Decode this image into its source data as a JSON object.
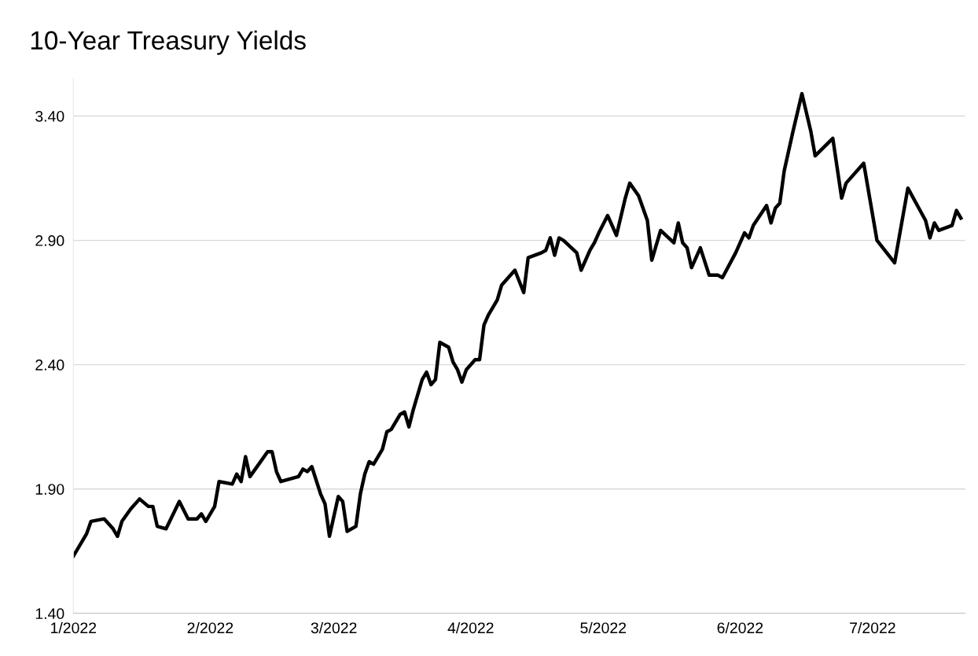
{
  "chart_data": {
    "type": "line",
    "title": "10-Year Treasury Yields",
    "x": [
      "2022-01-01",
      "2022-01-03",
      "2022-01-04",
      "2022-01-05",
      "2022-01-08",
      "2022-01-10",
      "2022-01-11",
      "2022-01-12",
      "2022-01-14",
      "2022-01-16",
      "2022-01-18",
      "2022-01-19",
      "2022-01-20",
      "2022-01-22",
      "2022-01-25",
      "2022-01-27",
      "2022-01-29",
      "2022-01-30",
      "2022-01-31",
      "2022-02-02",
      "2022-02-03",
      "2022-02-06",
      "2022-02-07",
      "2022-02-08",
      "2022-02-09",
      "2022-02-10",
      "2022-02-12",
      "2022-02-14",
      "2022-02-15",
      "2022-02-16",
      "2022-02-17",
      "2022-02-21",
      "2022-02-22",
      "2022-02-23",
      "2022-02-24",
      "2022-02-26",
      "2022-02-27",
      "2022-02-28",
      "2022-03-02",
      "2022-03-03",
      "2022-03-04",
      "2022-03-06",
      "2022-03-07",
      "2022-03-08",
      "2022-03-09",
      "2022-03-10",
      "2022-03-12",
      "2022-03-13",
      "2022-03-14",
      "2022-03-16",
      "2022-03-17",
      "2022-03-18",
      "2022-03-19",
      "2022-03-20",
      "2022-03-21",
      "2022-03-22",
      "2022-03-23",
      "2022-03-24",
      "2022-03-25",
      "2022-03-27",
      "2022-03-28",
      "2022-03-29",
      "2022-03-30",
      "2022-03-31",
      "2022-04-02",
      "2022-04-03",
      "2022-04-04",
      "2022-04-05",
      "2022-04-07",
      "2022-04-08",
      "2022-04-11",
      "2022-04-13",
      "2022-04-14",
      "2022-04-17",
      "2022-04-18",
      "2022-04-19",
      "2022-04-20",
      "2022-04-21",
      "2022-04-22",
      "2022-04-25",
      "2022-04-26",
      "2022-04-28",
      "2022-04-29",
      "2022-04-30",
      "2022-05-02",
      "2022-05-04",
      "2022-05-06",
      "2022-05-07",
      "2022-05-09",
      "2022-05-11",
      "2022-05-12",
      "2022-05-14",
      "2022-05-17",
      "2022-05-18",
      "2022-05-19",
      "2022-05-20",
      "2022-05-21",
      "2022-05-23",
      "2022-05-25",
      "2022-05-26",
      "2022-05-27",
      "2022-05-28",
      "2022-05-31",
      "2022-06-02",
      "2022-06-03",
      "2022-06-04",
      "2022-06-07",
      "2022-06-08",
      "2022-06-09",
      "2022-06-10",
      "2022-06-11",
      "2022-06-13",
      "2022-06-15",
      "2022-06-17",
      "2022-06-18",
      "2022-06-22",
      "2022-06-24",
      "2022-06-25",
      "2022-06-29",
      "2022-07-02",
      "2022-07-06",
      "2022-07-09",
      "2022-07-13",
      "2022-07-14",
      "2022-07-15",
      "2022-07-16",
      "2022-07-19",
      "2022-07-20",
      "2022-07-21"
    ],
    "series": [
      {
        "color": "#000000",
        "values": [
          1.63,
          1.69,
          1.72,
          1.77,
          1.78,
          1.74,
          1.71,
          1.77,
          1.82,
          1.86,
          1.83,
          1.83,
          1.75,
          1.74,
          1.85,
          1.78,
          1.78,
          1.8,
          1.77,
          1.83,
          1.93,
          1.92,
          1.96,
          1.93,
          2.03,
          1.95,
          2.0,
          2.05,
          2.05,
          1.97,
          1.93,
          1.95,
          1.98,
          1.97,
          1.99,
          1.88,
          1.84,
          1.71,
          1.87,
          1.85,
          1.73,
          1.75,
          1.88,
          1.96,
          2.01,
          2.0,
          2.06,
          2.13,
          2.14,
          2.2,
          2.21,
          2.15,
          2.22,
          2.28,
          2.34,
          2.37,
          2.32,
          2.34,
          2.49,
          2.47,
          2.41,
          2.38,
          2.33,
          2.38,
          2.42,
          2.42,
          2.56,
          2.6,
          2.66,
          2.72,
          2.78,
          2.69,
          2.83,
          2.85,
          2.86,
          2.91,
          2.84,
          2.91,
          2.9,
          2.85,
          2.78,
          2.86,
          2.89,
          2.93,
          3.0,
          2.92,
          3.07,
          3.13,
          3.08,
          2.98,
          2.82,
          2.94,
          2.89,
          2.97,
          2.89,
          2.87,
          2.79,
          2.87,
          2.76,
          2.76,
          2.76,
          2.75,
          2.85,
          2.93,
          2.91,
          2.96,
          3.04,
          2.97,
          3.03,
          3.05,
          3.18,
          3.34,
          3.49,
          3.34,
          3.24,
          3.31,
          3.07,
          3.13,
          3.21,
          2.9,
          2.81,
          3.11,
          2.98,
          2.91,
          2.97,
          2.94,
          2.96,
          3.02,
          2.99
        ]
      }
    ],
    "xlim": [
      "2022-01-01",
      "2022-07-22"
    ],
    "xticks": [
      {
        "value": "2022-01-01",
        "label": "1/2022"
      },
      {
        "value": "2022-02-01",
        "label": "2/2022"
      },
      {
        "value": "2022-03-01",
        "label": "3/2022"
      },
      {
        "value": "2022-04-01",
        "label": "4/2022"
      },
      {
        "value": "2022-05-01",
        "label": "5/2022"
      },
      {
        "value": "2022-06-01",
        "label": "6/2022"
      },
      {
        "value": "2022-07-01",
        "label": "7/2022"
      }
    ],
    "ylim": [
      1.4,
      3.55
    ],
    "yticks": [
      {
        "value": 1.4,
        "label": "1.40"
      },
      {
        "value": 1.9,
        "label": "1.90"
      },
      {
        "value": 2.4,
        "label": "2.40"
      },
      {
        "value": 2.9,
        "label": "2.90"
      },
      {
        "value": 3.4,
        "label": "3.40"
      }
    ],
    "grid": "y",
    "legend": false,
    "marker": "none",
    "line_style": "solid"
  }
}
